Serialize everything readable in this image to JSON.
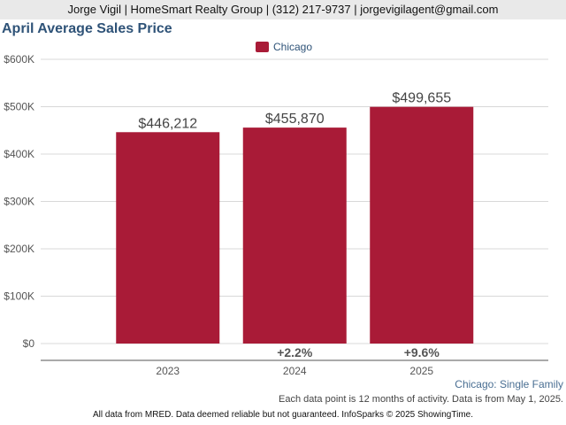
{
  "header": {
    "contact": "Jorge Vigil | HomeSmart Realty Group | (312) 217-9737 | jorgevigilagent@gmail.com"
  },
  "chart_data": {
    "type": "bar",
    "title": "April Average Sales Price",
    "categories": [
      "2023",
      "2024",
      "2025"
    ],
    "series": [
      {
        "name": "Chicago",
        "values": [
          446212,
          455870,
          499655
        ],
        "color": "#a91b37"
      }
    ],
    "value_labels": [
      "$446,212",
      "$455,870",
      "$499,655"
    ],
    "change_labels": [
      "",
      "+2.2%",
      "+9.6%"
    ],
    "yticks": [
      {
        "value": 0,
        "label": "$0"
      },
      {
        "value": 100000,
        "label": "$100K"
      },
      {
        "value": 200000,
        "label": "$200K"
      },
      {
        "value": 300000,
        "label": "$300K"
      },
      {
        "value": 400000,
        "label": "$400K"
      },
      {
        "value": 500000,
        "label": "$500K"
      },
      {
        "value": 600000,
        "label": "$600K"
      }
    ],
    "ylim": [
      0,
      600000
    ],
    "grid": true,
    "legend_position": "top-center"
  },
  "subtitle": "Chicago: Single Family",
  "note": "Each data point is 12 months of activity. Data is from May 1, 2025.",
  "footer": "All data from MRED. Data deemed reliable but not guaranteed. InfoSparks © 2025 ShowingTime."
}
